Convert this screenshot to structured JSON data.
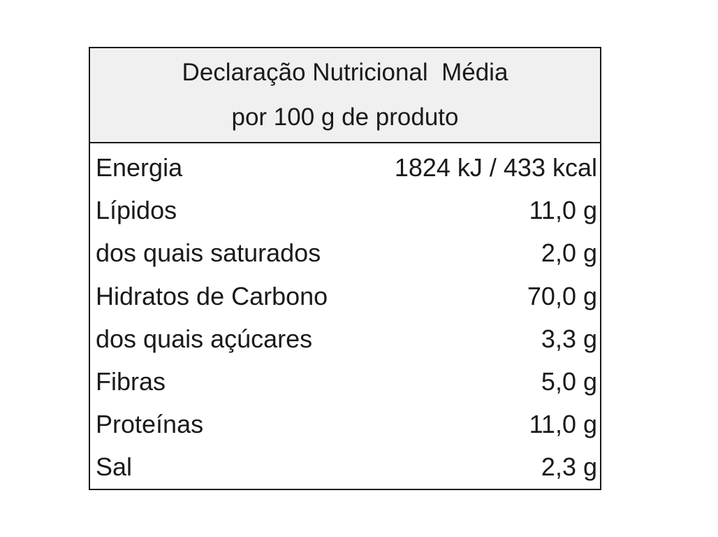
{
  "header": {
    "title_line1": "Declaração Nutricional  Média",
    "title_line2": "por 100 g de produto"
  },
  "rows": [
    {
      "label": "Energia",
      "value": "1824 kJ / 433 kcal"
    },
    {
      "label": "Lípidos",
      "value": "11,0 g"
    },
    {
      "label": "dos quais saturados",
      "value": "2,0 g"
    },
    {
      "label": "Hidratos de Carbono",
      "value": "70,0 g"
    },
    {
      "label": "dos quais açúcares",
      "value": "3,3 g"
    },
    {
      "label": "Fibras",
      "value": "5,0 g"
    },
    {
      "label": "Proteínas",
      "value": "11,0 g"
    },
    {
      "label": "Sal",
      "value": "2,3 g"
    }
  ]
}
